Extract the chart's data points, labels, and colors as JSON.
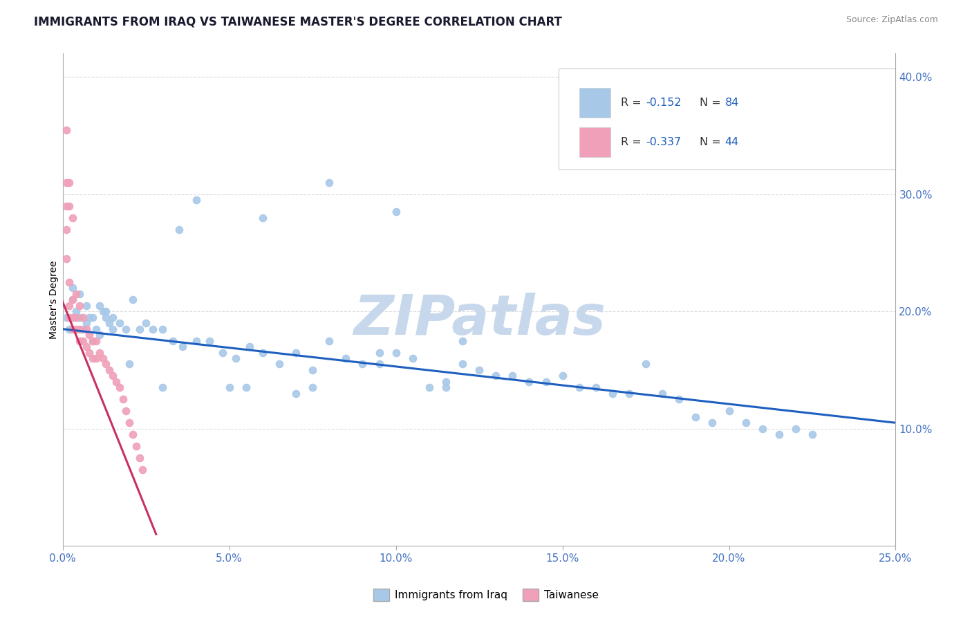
{
  "title": "IMMIGRANTS FROM IRAQ VS TAIWANESE MASTER'S DEGREE CORRELATION CHART",
  "source_text": "Source: ZipAtlas.com",
  "ylabel": "Master's Degree",
  "xlim": [
    0.0,
    0.25
  ],
  "ylim": [
    0.0,
    0.42
  ],
  "xtick_labels": [
    "0.0%",
    "5.0%",
    "10.0%",
    "15.0%",
    "20.0%",
    "25.0%"
  ],
  "xtick_vals": [
    0.0,
    0.05,
    0.1,
    0.15,
    0.2,
    0.25
  ],
  "ytick_right_labels": [
    "10.0%",
    "20.0%",
    "30.0%",
    "40.0%"
  ],
  "ytick_right_vals": [
    0.1,
    0.2,
    0.3,
    0.4
  ],
  "blue_color": "#A8C8E8",
  "pink_color": "#F0A0B8",
  "blue_line_color": "#1E5FBF",
  "pink_line_color": "#C83060",
  "watermark": "ZIPatlas",
  "watermark_color": "#C8D8EC",
  "legend_label1": "Immigrants from Iraq",
  "legend_label2": "Taiwanese",
  "blue_scatter_x": [
    0.001,
    0.002,
    0.003,
    0.004,
    0.005,
    0.006,
    0.007,
    0.008,
    0.009,
    0.01,
    0.011,
    0.012,
    0.013,
    0.014,
    0.015,
    0.003,
    0.005,
    0.007,
    0.009,
    0.011,
    0.013,
    0.015,
    0.017,
    0.019,
    0.021,
    0.023,
    0.025,
    0.027,
    0.03,
    0.033,
    0.036,
    0.04,
    0.044,
    0.048,
    0.052,
    0.056,
    0.06,
    0.065,
    0.07,
    0.075,
    0.08,
    0.085,
    0.09,
    0.095,
    0.1,
    0.105,
    0.11,
    0.115,
    0.12,
    0.125,
    0.13,
    0.135,
    0.14,
    0.145,
    0.15,
    0.155,
    0.16,
    0.165,
    0.17,
    0.175,
    0.18,
    0.185,
    0.19,
    0.195,
    0.2,
    0.205,
    0.21,
    0.215,
    0.22,
    0.225,
    0.04,
    0.06,
    0.08,
    0.1,
    0.12,
    0.035,
    0.055,
    0.075,
    0.095,
    0.115,
    0.02,
    0.03,
    0.05,
    0.07
  ],
  "blue_scatter_y": [
    0.195,
    0.185,
    0.21,
    0.2,
    0.195,
    0.185,
    0.19,
    0.195,
    0.175,
    0.185,
    0.18,
    0.2,
    0.195,
    0.19,
    0.185,
    0.22,
    0.215,
    0.205,
    0.195,
    0.205,
    0.2,
    0.195,
    0.19,
    0.185,
    0.21,
    0.185,
    0.19,
    0.185,
    0.185,
    0.175,
    0.17,
    0.175,
    0.175,
    0.165,
    0.16,
    0.17,
    0.165,
    0.155,
    0.165,
    0.15,
    0.175,
    0.16,
    0.155,
    0.165,
    0.165,
    0.16,
    0.135,
    0.14,
    0.155,
    0.15,
    0.145,
    0.145,
    0.14,
    0.14,
    0.145,
    0.135,
    0.135,
    0.13,
    0.13,
    0.155,
    0.13,
    0.125,
    0.11,
    0.105,
    0.115,
    0.105,
    0.1,
    0.095,
    0.1,
    0.095,
    0.295,
    0.28,
    0.31,
    0.285,
    0.175,
    0.27,
    0.135,
    0.135,
    0.155,
    0.135,
    0.155,
    0.135,
    0.135,
    0.13
  ],
  "pink_scatter_x": [
    0.001,
    0.001,
    0.001,
    0.001,
    0.001,
    0.002,
    0.002,
    0.002,
    0.002,
    0.002,
    0.003,
    0.003,
    0.003,
    0.003,
    0.004,
    0.004,
    0.004,
    0.005,
    0.005,
    0.005,
    0.006,
    0.006,
    0.007,
    0.007,
    0.008,
    0.008,
    0.009,
    0.009,
    0.01,
    0.01,
    0.011,
    0.012,
    0.013,
    0.014,
    0.015,
    0.016,
    0.017,
    0.018,
    0.019,
    0.02,
    0.021,
    0.022,
    0.023,
    0.024
  ],
  "pink_scatter_y": [
    0.355,
    0.31,
    0.29,
    0.27,
    0.245,
    0.31,
    0.29,
    0.225,
    0.205,
    0.195,
    0.28,
    0.21,
    0.195,
    0.185,
    0.215,
    0.195,
    0.185,
    0.205,
    0.185,
    0.175,
    0.195,
    0.175,
    0.185,
    0.17,
    0.18,
    0.165,
    0.175,
    0.16,
    0.175,
    0.16,
    0.165,
    0.16,
    0.155,
    0.15,
    0.145,
    0.14,
    0.135,
    0.125,
    0.115,
    0.105,
    0.095,
    0.085,
    0.075,
    0.065
  ],
  "blue_trend_x": [
    0.0,
    0.25
  ],
  "blue_trend_y": [
    0.185,
    0.105
  ],
  "pink_trend_x": [
    -0.001,
    0.028
  ],
  "pink_trend_y": [
    0.215,
    0.01
  ],
  "title_fontsize": 12,
  "axis_label_fontsize": 10,
  "tick_fontsize": 11,
  "background_color": "#FFFFFF",
  "grid_color": "#DDDDDD",
  "right_tick_color": "#4472C4",
  "bottom_tick_color": "#4472C4"
}
